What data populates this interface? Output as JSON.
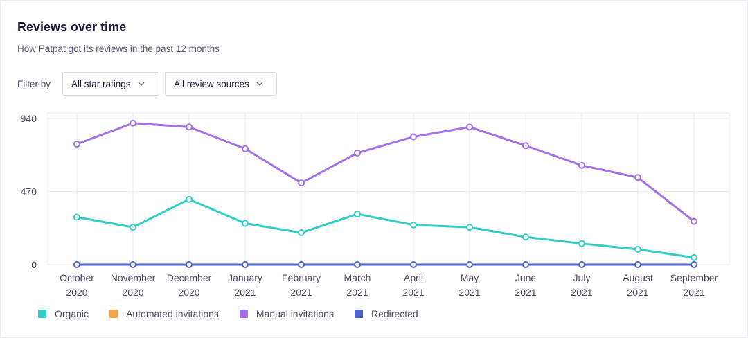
{
  "header": {
    "title": "Reviews over time",
    "subtitle": "How Patpat got its reviews in the past 12 months"
  },
  "filters": {
    "label": "Filter by",
    "star_ratings": "All star ratings",
    "review_sources": "All review sources"
  },
  "chart_data": {
    "type": "line",
    "title": "",
    "xlabel": "",
    "ylabel": "",
    "ylim": [
      0,
      940
    ],
    "y_ticks": [
      "0",
      "470",
      "940"
    ],
    "grid": true,
    "legend_position": "bottom-left",
    "categories": [
      [
        "October",
        "2020"
      ],
      [
        "November",
        "2020"
      ],
      [
        "December",
        "2020"
      ],
      [
        "January",
        "2021"
      ],
      [
        "February",
        "2021"
      ],
      [
        "March",
        "2021"
      ],
      [
        "April",
        "2021"
      ],
      [
        "May",
        "2021"
      ],
      [
        "June",
        "2021"
      ],
      [
        "July",
        "2021"
      ],
      [
        "August",
        "2021"
      ],
      [
        "September",
        "2021"
      ]
    ],
    "series": [
      {
        "name": "Organic",
        "color": "#34cdc6",
        "values": [
          305,
          240,
          420,
          265,
          205,
          325,
          255,
          240,
          177,
          135,
          98,
          45
        ]
      },
      {
        "name": "Automated invitations",
        "color": "#f6a54d",
        "values": [
          0,
          0,
          0,
          0,
          0,
          0,
          0,
          0,
          0,
          0,
          0,
          0
        ]
      },
      {
        "name": "Manual invitations",
        "color": "#a470e8",
        "values": [
          775,
          910,
          885,
          745,
          525,
          718,
          822,
          885,
          765,
          638,
          560,
          278
        ]
      },
      {
        "name": "Redirected",
        "color": "#4e64cb",
        "values": [
          0,
          0,
          0,
          0,
          0,
          0,
          0,
          0,
          0,
          0,
          0,
          0
        ]
      }
    ]
  }
}
